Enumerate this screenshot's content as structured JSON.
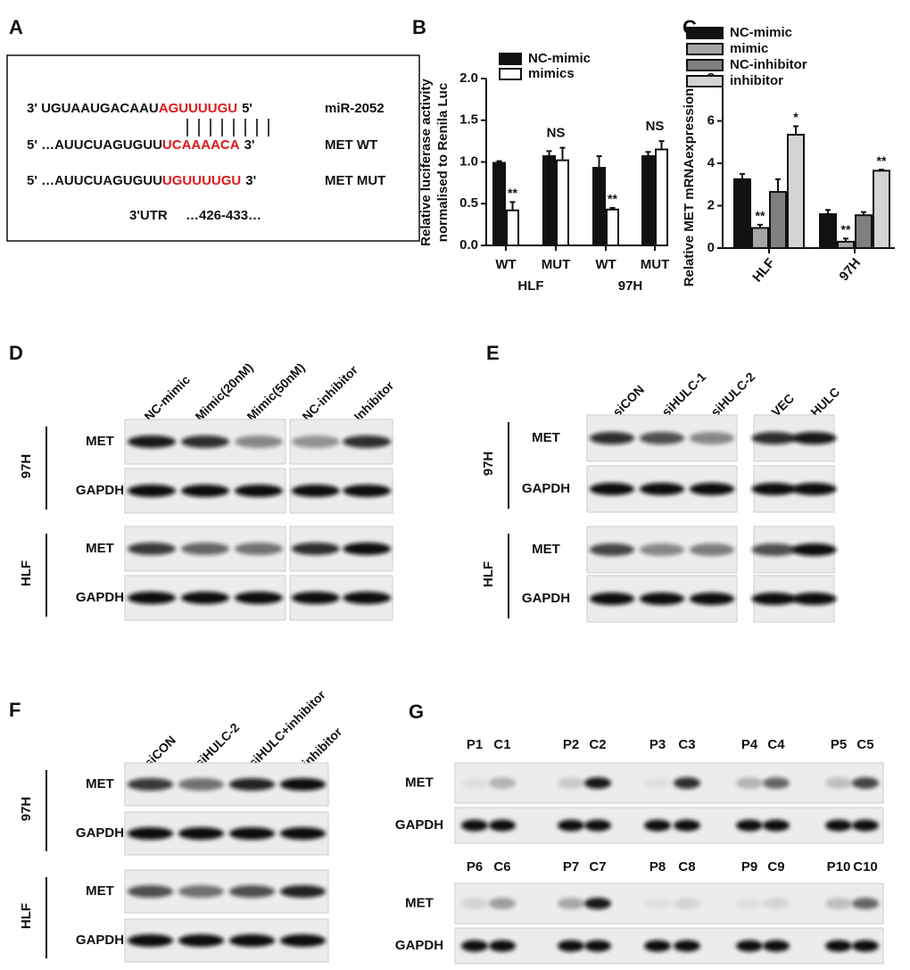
{
  "panel_labels": [
    "A",
    "B",
    "C",
    "D",
    "E",
    "F",
    "G"
  ],
  "sequence": {
    "rows": [
      {
        "prefix": "3' UGUAAUGACAAU",
        "seed": "AGUUUUGU",
        "suffix": "5'",
        "name": "miR-2052"
      },
      {
        "prefix": "5' …AUUCUAGUGUU",
        "seed": "UCAAAACA",
        "suffix": "3'",
        "name": "MET WT"
      },
      {
        "prefix": "5' …AUUCUAGUGUU",
        "seed": "UGUUUUGU",
        "suffix": "3'",
        "name": "MET MUT"
      }
    ],
    "region": "3'UTR",
    "position": "…426-433…"
  },
  "chart_data": [
    {
      "type": "bar",
      "ylabel": [
        "Relative luciferase activity",
        "normalised to Renila Luc"
      ],
      "categories": [
        "WT",
        "MUT",
        "WT",
        "MUT"
      ],
      "group_labels": [
        "HLF",
        "97H"
      ],
      "series": [
        {
          "name": "NC-mimic",
          "color": "#111111",
          "values": [
            0.99,
            1.07,
            0.93,
            1.07
          ],
          "errors": [
            0.02,
            0.06,
            0.14,
            0.05
          ]
        },
        {
          "name": "mimics",
          "color": "#ffffff",
          "values": [
            0.42,
            1.02,
            0.43,
            1.15
          ],
          "errors": [
            0.1,
            0.15,
            0.02,
            0.1
          ],
          "labels": [
            "**",
            null,
            "**",
            null
          ]
        }
      ],
      "annotations": [
        {
          "text": "NS",
          "category": 1
        },
        {
          "text": "NS",
          "category": 3
        }
      ],
      "ylim": [
        0,
        2
      ],
      "yticks": [
        {
          "value": 0,
          "label": "0.0"
        },
        {
          "value": 0.5,
          "label": "0.5"
        },
        {
          "value": 1,
          "label": "1.0"
        },
        {
          "value": 1.5,
          "label": "1.5"
        },
        {
          "value": 2,
          "label": "2.0"
        }
      ]
    },
    {
      "type": "bar",
      "ylabel": [
        "Relative MET mRNAexpression"
      ],
      "categories": [
        "HLF",
        "97H"
      ],
      "series": [
        {
          "name": "NC-mimic",
          "color": "#111111",
          "values": [
            3.25,
            1.6
          ],
          "errors": [
            0.25,
            0.2
          ]
        },
        {
          "name": "mimic",
          "color": "#a6a6a6",
          "values": [
            0.95,
            0.3
          ],
          "errors": [
            0.15,
            0.15
          ],
          "labels": [
            "**",
            "**"
          ]
        },
        {
          "name": "NC-inhibitor",
          "color": "#7f7f7f",
          "values": [
            2.65,
            1.55
          ],
          "errors": [
            0.6,
            0.15
          ]
        },
        {
          "name": "inhibitor",
          "color": "#d4d4d4",
          "values": [
            5.35,
            3.65
          ],
          "errors": [
            0.4,
            0.05
          ],
          "labels": [
            "*",
            "**"
          ]
        }
      ],
      "ylim": [
        0,
        8
      ],
      "yticks": [
        0,
        2,
        4,
        6,
        8
      ]
    }
  ],
  "blots": [
    {
      "columns": [
        "NC-mimic",
        "Mimic(20nM)",
        "Mimic(50nM)",
        "NC-inhibitor",
        "Inhibitor"
      ],
      "groups": [
        {
          "name": "97H",
          "rows": [
            "MET",
            "GAPDH"
          ]
        },
        {
          "name": "HLF",
          "rows": [
            "MET",
            "GAPDH"
          ]
        }
      ]
    },
    {
      "columns": [
        "siCON",
        "siHULC-1",
        "siHULC-2",
        "VEC",
        "HULC"
      ],
      "groups": [
        {
          "name": "97H",
          "rows": [
            "MET",
            "GAPDH"
          ]
        },
        {
          "name": "HLF",
          "rows": [
            "MET",
            "GAPDH"
          ]
        }
      ]
    },
    {
      "columns": [
        "siCON",
        "siHULC-2",
        "siHULC+inhibitor",
        "inhibitor"
      ],
      "groups": [
        {
          "name": "97H",
          "rows": [
            "MET",
            "GAPDH"
          ]
        },
        {
          "name": "HLF",
          "rows": [
            "MET",
            "GAPDH"
          ]
        }
      ]
    }
  ],
  "tissue_blot": {
    "sets": [
      {
        "lanes": [
          "P1",
          "C1",
          "P2",
          "C2",
          "P3",
          "C3",
          "P4",
          "C4",
          "P5",
          "C5"
        ],
        "rows": [
          "MET",
          "GAPDH"
        ]
      },
      {
        "lanes": [
          "P6",
          "C6",
          "P7",
          "C7",
          "P8",
          "C8",
          "P9",
          "C9",
          "P10",
          "C10"
        ],
        "rows": [
          "MET",
          "GAPDH"
        ]
      }
    ]
  }
}
